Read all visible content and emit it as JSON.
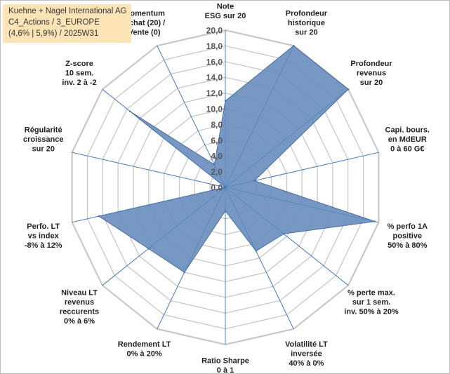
{
  "legend": {
    "line1": "Kuehne + Nagel International AG",
    "line2": "C4_Actions / 3_EUROPE",
    "line3": "(4,6% | 5,9%) / 2025W31"
  },
  "colors": {
    "fill": "#6d8fbf",
    "stroke": "#4a6fa3",
    "grid": "#c8c8c8",
    "spoke": "#4a7fc1"
  },
  "chart_data": {
    "type": "radar",
    "rmin": 0,
    "rmax": 20,
    "ticks": [
      "0,0",
      "2,0",
      "4,0",
      "6,0",
      "8,0",
      "10,0",
      "12,0",
      "14,0",
      "16,0",
      "18,0",
      "20,0"
    ],
    "categories": [
      [
        "Note",
        "ESG sur 20"
      ],
      [
        "Profondeur",
        "historique",
        "sur 20"
      ],
      [
        "Profondeur",
        "revenus",
        "sur 20"
      ],
      [
        "Capi. bours.",
        "en MdEUR",
        "0 à 60 G€"
      ],
      [
        "% perfo 1A",
        "positive",
        "50% à 80%"
      ],
      [
        "% perte max.",
        "sur 1 sem.",
        "inv. 50% à 20%"
      ],
      [
        "Volatilité LT",
        "inversée",
        "40% à 0%"
      ],
      [
        "Ratio Sharpe",
        "0 à 1"
      ],
      [
        "Rendement LT",
        "0% à 20%"
      ],
      [
        "Niveau LT",
        "revenus",
        "reccurents",
        "0% à 6%"
      ],
      [
        "Perfo. LT",
        "vs index",
        "-8% à 12%"
      ],
      [
        "Régularité",
        "croissance",
        "sur 20"
      ],
      [
        "Z-score",
        "10 sem.",
        "inv. 2 à -2"
      ],
      [
        "Momentum",
        "Achat (20) /",
        "Vente (0)"
      ]
    ],
    "values": [
      11.0,
      20.0,
      20.0,
      3.8,
      19.5,
      9.5,
      9.0,
      3.0,
      12.0,
      12.5,
      16.5,
      0.0,
      15.5,
      3.2
    ],
    "grid": true,
    "legend": "top-left"
  }
}
